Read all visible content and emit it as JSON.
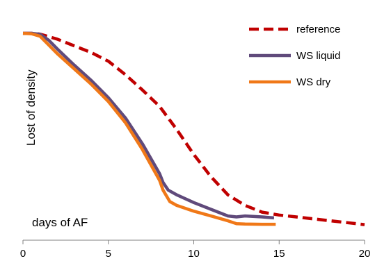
{
  "chart_data": {
    "type": "line",
    "title": "",
    "xlabel": "days of AF",
    "ylabel": "Lost of density",
    "xlim": [
      0,
      20
    ],
    "xticks": [
      0,
      5,
      10,
      15,
      20
    ],
    "x_tick_labels": [
      "0",
      "5",
      "10",
      "15",
      "20"
    ],
    "y_tick_labels": [],
    "y_value_scale": "relative 0 to 1 (axis not numbered)",
    "ylim": [
      0,
      1
    ],
    "grid": false,
    "legend_position": "top-right",
    "series": [
      {
        "name": "reference",
        "color": "#c00000",
        "dash": "dashed",
        "x": [
          0,
          0.5,
          1,
          2,
          3,
          4,
          5,
          6,
          7,
          8,
          9,
          10,
          11,
          12,
          13,
          14,
          15,
          16,
          17,
          18,
          19,
          20
        ],
        "y": [
          1.0,
          1.0,
          0.996,
          0.97,
          0.935,
          0.9,
          0.855,
          0.785,
          0.705,
          0.62,
          0.5,
          0.37,
          0.255,
          0.16,
          0.105,
          0.07,
          0.055,
          0.045,
          0.035,
          0.025,
          0.015,
          0.005
        ]
      },
      {
        "name": "WS liquid",
        "color": "#604a7b",
        "dash": "solid",
        "x": [
          0,
          0.5,
          1,
          1.5,
          2,
          3,
          4,
          5,
          6,
          7,
          8,
          8.2,
          8.5,
          9,
          10,
          11,
          12,
          12.5,
          13,
          14,
          14.7
        ],
        "y": [
          1.0,
          1.0,
          0.995,
          0.965,
          0.92,
          0.835,
          0.755,
          0.665,
          0.56,
          0.425,
          0.27,
          0.225,
          0.185,
          0.16,
          0.12,
          0.085,
          0.05,
          0.045,
          0.05,
          0.045,
          0.04
        ]
      },
      {
        "name": "WS dry",
        "color": "#f07818",
        "dash": "solid",
        "x": [
          0,
          0.5,
          1,
          1.5,
          2,
          3,
          4,
          5,
          6,
          7,
          8,
          8.2,
          8.6,
          9,
          10,
          11,
          12,
          12.5,
          13,
          14,
          14.8
        ],
        "y": [
          1.0,
          0.998,
          0.985,
          0.94,
          0.895,
          0.815,
          0.735,
          0.645,
          0.535,
          0.395,
          0.235,
          0.185,
          0.125,
          0.105,
          0.075,
          0.05,
          0.025,
          0.01,
          0.008,
          0.007,
          0.007
        ]
      }
    ]
  }
}
